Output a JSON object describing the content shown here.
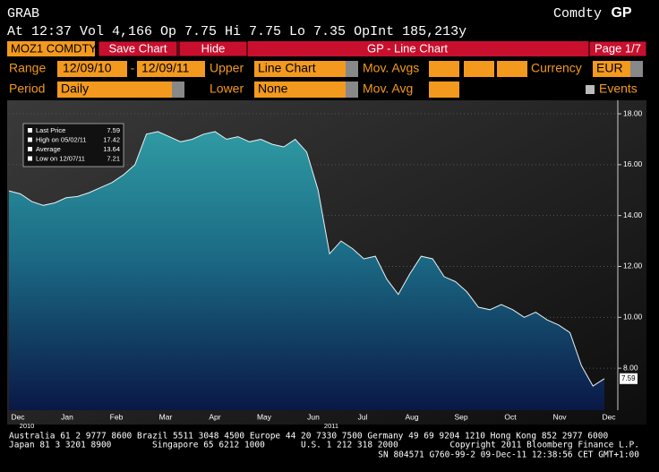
{
  "header": {
    "code": "GRAB",
    "brand": "Comdty",
    "function": "GP",
    "quote": "At 12:37 Vol 4,166 Op 7.75 Hi 7.75 Lo 7.35 OpInt 185,213y"
  },
  "toolbar": {
    "security": "MOZ1 COMDTY",
    "save": "Save Chart",
    "hide": "Hide",
    "title": "GP - Line Chart",
    "page": "Page 1/7"
  },
  "controls": {
    "range_label": "Range",
    "start": "12/09/10",
    "dash": "-",
    "end": "12/09/11",
    "upper_label": "Upper",
    "upper": "Line Chart",
    "mov_avgs_label": "Mov. Avgs",
    "currency_label": "Currency",
    "currency": "EUR",
    "period_label": "Period",
    "period": "Daily",
    "lower_label": "Lower",
    "lower": "None",
    "mov_avg_label": "Mov. Avg",
    "events_label": "Events"
  },
  "chart_data": {
    "type": "area",
    "values": [
      14.97,
      14.85,
      14.55,
      14.4,
      14.5,
      14.7,
      14.75,
      14.9,
      15.1,
      15.3,
      15.6,
      16.0,
      17.2,
      17.3,
      17.1,
      16.9,
      17.0,
      17.2,
      17.3,
      17.0,
      17.1,
      16.9,
      17.0,
      16.8,
      16.7,
      17.0,
      16.5,
      15.0,
      12.5,
      13.0,
      12.7,
      12.3,
      12.4,
      11.5,
      10.9,
      11.7,
      12.4,
      12.3,
      11.6,
      11.4,
      11.0,
      10.4,
      10.3,
      10.5,
      10.3,
      10.0,
      10.2,
      9.9,
      9.7,
      9.4,
      8.1,
      7.3,
      7.59
    ],
    "month_labels": [
      "Dec",
      "Jan",
      "Feb",
      "Mar",
      "Apr",
      "May",
      "Jun",
      "Jul",
      "Aug",
      "Sep",
      "Oct",
      "Nov",
      "Dec"
    ],
    "year_labels": [
      "2010",
      "2011"
    ],
    "ylim": [
      6.35,
      18.53
    ],
    "yticks": [
      {
        "value": 8,
        "label": "8.00"
      },
      {
        "value": 10,
        "label": "10.00"
      },
      {
        "value": 12,
        "label": "12.00"
      },
      {
        "value": 14,
        "label": "14.00"
      },
      {
        "value": 16,
        "label": "16.00"
      },
      {
        "value": 18,
        "label": "18.00"
      }
    ],
    "grid": true,
    "legend": [
      {
        "label": "Last Price",
        "value": "7.59"
      },
      {
        "label": "High on 05/02/11",
        "value": "17.42"
      },
      {
        "label": "Average",
        "value": "13.64"
      },
      {
        "label": "Low on 12/07/11",
        "value": "7.21"
      }
    ]
  },
  "footer": {
    "line1": "Australia 61 2 9777 8600 Brazil 5511 3048 4500 Europe 44 20 7330 7500 Germany 49 69 9204 1210 Hong Kong 852 2977 6000",
    "japan": "Japan 81 3 3201 8900",
    "singapore": "Singapore 65 6212 1000",
    "us": "U.S. 1 212 318 2000",
    "copyright": "Copyright 2011 Bloomberg Finance L.P.",
    "line3": "SN 804571 G760-99-2 09-Dec-11 12:38:56 CET  GMT+1:00"
  }
}
